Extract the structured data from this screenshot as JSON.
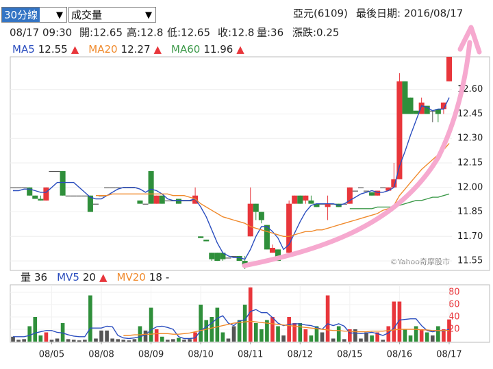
{
  "toolbar": {
    "period": "30分線",
    "indicator": "成交量",
    "stock": "亞元(6109)",
    "last_date": "最後日期: 2016/08/17"
  },
  "quote": [
    "08/17 09:30",
    "開:12.65",
    "高:12.8",
    "低:12.65",
    "收:12.8",
    "量:36",
    "漲跌:0.25"
  ],
  "watermark": "©Yahoo奇摩股市",
  "chart_data": [
    {
      "type": "candlestick",
      "colors": {
        "up": "#e8363b",
        "down": "#2f8f3b",
        "flat": "#555555"
      },
      "open": [
        12,
        12,
        12,
        12,
        11.95,
        11.93,
        11.92,
        12.1,
        12.1,
        12.1,
        11.95,
        11.95,
        11.95,
        11.95,
        11.95,
        11.9,
        11.95,
        12,
        12,
        12,
        12,
        12,
        12,
        11.92,
        11.9,
        12.1,
        11.9,
        11.95,
        11.92,
        11.92,
        11.93,
        11.92,
        11.92,
        11.9,
        11.7,
        11.68,
        11.6,
        11.6,
        11.6,
        11.57,
        11.58,
        11.58,
        11.55,
        11.7,
        11.9,
        11.85,
        11.77,
        11.6,
        11.62,
        11.57,
        11.6,
        11.9,
        11.95,
        11.92,
        11.92,
        11.9,
        11.9,
        11.88,
        11.9,
        11.9,
        11.9,
        11.9,
        11.98,
        12,
        11.98,
        11.97,
        11.95,
        12,
        11.98,
        12,
        12.05,
        12.65,
        12.55,
        12.47,
        12.45,
        12.5,
        12.47,
        12.48,
        12.48,
        12.65
      ],
      "high": [
        12,
        12,
        12,
        12,
        11.95,
        11.95,
        12,
        12.1,
        12.1,
        12.1,
        11.95,
        11.95,
        11.95,
        11.95,
        11.95,
        11.9,
        11.95,
        12,
        12,
        12,
        12,
        12,
        12,
        11.92,
        11.9,
        12.1,
        11.95,
        11.95,
        11.92,
        11.92,
        11.93,
        11.92,
        11.92,
        12,
        11.7,
        11.68,
        11.6,
        11.6,
        11.6,
        11.57,
        11.58,
        11.58,
        11.58,
        12,
        11.9,
        11.85,
        11.77,
        11.65,
        11.62,
        11.57,
        11.92,
        11.95,
        11.95,
        11.95,
        11.95,
        11.9,
        11.9,
        11.95,
        11.9,
        11.9,
        11.9,
        12,
        11.98,
        12,
        11.98,
        11.97,
        11.98,
        12,
        12,
        12.15,
        12.7,
        12.65,
        12.55,
        12.47,
        12.55,
        12.5,
        12.47,
        12.48,
        12.52,
        12.8
      ],
      "low": [
        12,
        12,
        12,
        11.95,
        11.93,
        11.92,
        11.92,
        12.1,
        12.1,
        11.95,
        11.95,
        11.95,
        11.95,
        11.95,
        11.85,
        11.9,
        11.95,
        12,
        12,
        12,
        12,
        12,
        12,
        11.9,
        11.9,
        11.9,
        11.9,
        11.9,
        11.92,
        11.92,
        11.9,
        11.92,
        11.92,
        11.9,
        11.69,
        11.67,
        11.55,
        11.55,
        11.55,
        11.57,
        11.58,
        11.55,
        11.5,
        11.7,
        11.8,
        11.78,
        11.62,
        11.6,
        11.55,
        11.57,
        11.58,
        11.9,
        11.9,
        11.9,
        11.9,
        11.88,
        11.9,
        11.8,
        11.9,
        11.88,
        11.9,
        11.9,
        11.98,
        12,
        11.98,
        11.95,
        11.95,
        12,
        11.98,
        12,
        12.05,
        12.45,
        12.45,
        12.45,
        12.45,
        12.45,
        12.4,
        12.4,
        12.45,
        12.65
      ],
      "close": [
        12,
        12,
        12,
        11.95,
        11.93,
        11.92,
        12,
        12.1,
        12.1,
        11.95,
        11.95,
        11.95,
        11.95,
        11.95,
        11.85,
        11.9,
        11.95,
        12,
        12,
        12,
        12,
        12,
        12,
        11.9,
        11.9,
        11.9,
        11.95,
        11.9,
        11.92,
        11.92,
        11.9,
        11.92,
        11.92,
        11.95,
        11.69,
        11.67,
        11.56,
        11.55,
        11.56,
        11.57,
        11.58,
        11.55,
        11.52,
        11.9,
        11.85,
        11.8,
        11.62,
        11.63,
        11.55,
        11.57,
        11.9,
        11.95,
        11.9,
        11.95,
        11.9,
        11.88,
        11.9,
        11.9,
        11.9,
        11.88,
        11.9,
        12,
        11.98,
        12,
        11.98,
        11.95,
        11.98,
        12,
        12,
        12.05,
        12.65,
        12.45,
        12.45,
        12.45,
        12.52,
        12.45,
        12.47,
        12.45,
        12.52,
        12.8
      ],
      "xlim": [
        -0.5,
        79.5
      ],
      "ylim": [
        11.5,
        12.8
      ],
      "yticks": [
        11.55,
        {
          "value": 11.7,
          "label": "11.70"
        },
        11.85,
        {
          "value": 12,
          "label": "12.00"
        },
        12.15,
        {
          "value": 12.3,
          "label": "12.30"
        },
        12.45,
        {
          "value": 12.6,
          "label": "12.60"
        }
      ],
      "grid": true,
      "series": [
        {
          "name": "MA5",
          "color": "#2b4ebf",
          "trend": "▲",
          "values": [
            11.98,
            11.98,
            11.99,
            11.99,
            11.98,
            11.97,
            11.97,
            12,
            12.03,
            12.03,
            12.03,
            12.03,
            12,
            11.97,
            11.94,
            11.93,
            11.93,
            11.95,
            11.97,
            11.99,
            12,
            12,
            12,
            11.99,
            11.97,
            11.99,
            11.98,
            11.96,
            11.93,
            11.92,
            11.92,
            11.92,
            11.92,
            11.93,
            11.88,
            11.82,
            11.74,
            11.66,
            11.6,
            11.58,
            11.57,
            11.57,
            11.56,
            11.62,
            11.7,
            11.76,
            11.76,
            11.73,
            11.69,
            11.62,
            11.65,
            11.72,
            11.79,
            11.85,
            11.89,
            11.9,
            11.9,
            11.9,
            11.9,
            11.89,
            11.9,
            11.92,
            11.94,
            11.96,
            11.97,
            11.98,
            11.97,
            11.97,
            11.98,
            12,
            12.13,
            12.22,
            12.32,
            12.41,
            12.5,
            12.49,
            12.47,
            12.48,
            12.48,
            12.55
          ]
        },
        {
          "name": "MA20",
          "color": "#f08a2c",
          "trend": "▲",
          "values": [
            null,
            null,
            null,
            null,
            null,
            null,
            null,
            null,
            null,
            null,
            null,
            null,
            null,
            null,
            null,
            11.95,
            11.95,
            11.95,
            11.96,
            11.96,
            11.96,
            11.96,
            11.96,
            11.96,
            11.96,
            11.96,
            11.96,
            11.96,
            11.96,
            11.95,
            11.95,
            11.95,
            11.94,
            11.93,
            11.9,
            11.88,
            11.86,
            11.84,
            11.82,
            11.81,
            11.8,
            11.79,
            11.78,
            11.76,
            11.75,
            11.74,
            11.73,
            11.72,
            11.71,
            11.7,
            11.7,
            11.71,
            11.72,
            11.73,
            11.73,
            11.74,
            11.74,
            11.75,
            11.76,
            11.77,
            11.78,
            11.79,
            11.8,
            11.81,
            11.82,
            11.83,
            11.84,
            11.86,
            11.87,
            11.89,
            11.95,
            11.99,
            12.03,
            12.07,
            12.11,
            12.14,
            12.17,
            12.2,
            12.23,
            12.27
          ]
        },
        {
          "name": "MA60",
          "color": "#3d9a4a",
          "trend": "▲",
          "values": [
            null,
            null,
            null,
            null,
            null,
            null,
            null,
            null,
            null,
            null,
            null,
            null,
            null,
            null,
            null,
            null,
            null,
            null,
            null,
            null,
            null,
            null,
            null,
            null,
            null,
            null,
            null,
            null,
            null,
            null,
            null,
            null,
            null,
            null,
            null,
            null,
            null,
            null,
            null,
            null,
            null,
            null,
            null,
            null,
            null,
            null,
            null,
            null,
            null,
            null,
            null,
            null,
            null,
            null,
            null,
            null,
            null,
            null,
            null,
            null,
            null,
            11.87,
            11.87,
            11.87,
            11.87,
            11.87,
            11.88,
            11.88,
            11.88,
            11.88,
            11.89,
            11.9,
            11.91,
            11.92,
            11.92,
            11.93,
            11.94,
            11.94,
            11.95,
            11.96
          ]
        }
      ]
    },
    {
      "type": "bar",
      "name": "量",
      "values": [
        8,
        3,
        4,
        25,
        40,
        10,
        15,
        3,
        5,
        30,
        4,
        3,
        2,
        3,
        75,
        5,
        18,
        18,
        5,
        4,
        3,
        2,
        4,
        25,
        18,
        55,
        20,
        8,
        3,
        4,
        6,
        3,
        4,
        15,
        60,
        35,
        40,
        55,
        15,
        5,
        25,
        35,
        60,
        88,
        30,
        20,
        35,
        40,
        25,
        10,
        40,
        30,
        30,
        20,
        10,
        25,
        15,
        75,
        5,
        25,
        4,
        20,
        20,
        5,
        15,
        10,
        15,
        3,
        25,
        65,
        65,
        20,
        10,
        25,
        20,
        15,
        10,
        25,
        20,
        36
      ],
      "xlim": [
        -0.5,
        79.5
      ],
      "ylim": [
        0,
        90
      ],
      "yticks": [
        20,
        40,
        60,
        80
      ],
      "tick_color": "#e8363b",
      "xticks": [
        {
          "value": 7,
          "label": "08/05"
        },
        {
          "value": 16,
          "label": "08/08"
        },
        {
          "value": 25,
          "label": "08/09"
        },
        {
          "value": 34,
          "label": "08/10"
        },
        {
          "value": 43,
          "label": "08/11"
        },
        {
          "value": 52,
          "label": "08/12"
        },
        {
          "value": 61,
          "label": "08/15"
        },
        {
          "value": 70,
          "label": "08/16"
        },
        {
          "value": 79,
          "label": "08/17"
        }
      ],
      "series": [
        {
          "name": "MV5",
          "color": "#2b4ebf",
          "trend": "▲",
          "trend_color": "#e8363b",
          "values": [
            8,
            8,
            8,
            10,
            14,
            16,
            18,
            18,
            15,
            14,
            11,
            9,
            8,
            8,
            22,
            22,
            22,
            25,
            24,
            10,
            6,
            5,
            6,
            8,
            11,
            19,
            24,
            25,
            23,
            20,
            8,
            5,
            5,
            6,
            18,
            24,
            30,
            38,
            42,
            30,
            26,
            34,
            35,
            49,
            52,
            47,
            47,
            39,
            30,
            26,
            28,
            29,
            29,
            27,
            26,
            23,
            20,
            29,
            26,
            29,
            25,
            14,
            14,
            13,
            14,
            15,
            13,
            10,
            14,
            22,
            35,
            36,
            37,
            37,
            26,
            18,
            16,
            18,
            17,
            20
          ]
        },
        {
          "name": "MV20",
          "color": "#f08a2c",
          "trend": "-",
          "trend_color": "#222222",
          "values": [
            null,
            null,
            null,
            null,
            null,
            null,
            null,
            null,
            null,
            null,
            null,
            null,
            null,
            null,
            null,
            null,
            null,
            null,
            null,
            null,
            10,
            10,
            11,
            11,
            12,
            12,
            13,
            13,
            13,
            12,
            12,
            13,
            14,
            16,
            18,
            20,
            22,
            24,
            26,
            28,
            30,
            31,
            32,
            33,
            32,
            31,
            30,
            29,
            28,
            27,
            26,
            25,
            24,
            23,
            22,
            21,
            20,
            19,
            18,
            18,
            17,
            17,
            16,
            16,
            16,
            17,
            17,
            17,
            18,
            19,
            20,
            20,
            20,
            20,
            19,
            19,
            18,
            18,
            18,
            18
          ]
        }
      ]
    }
  ]
}
